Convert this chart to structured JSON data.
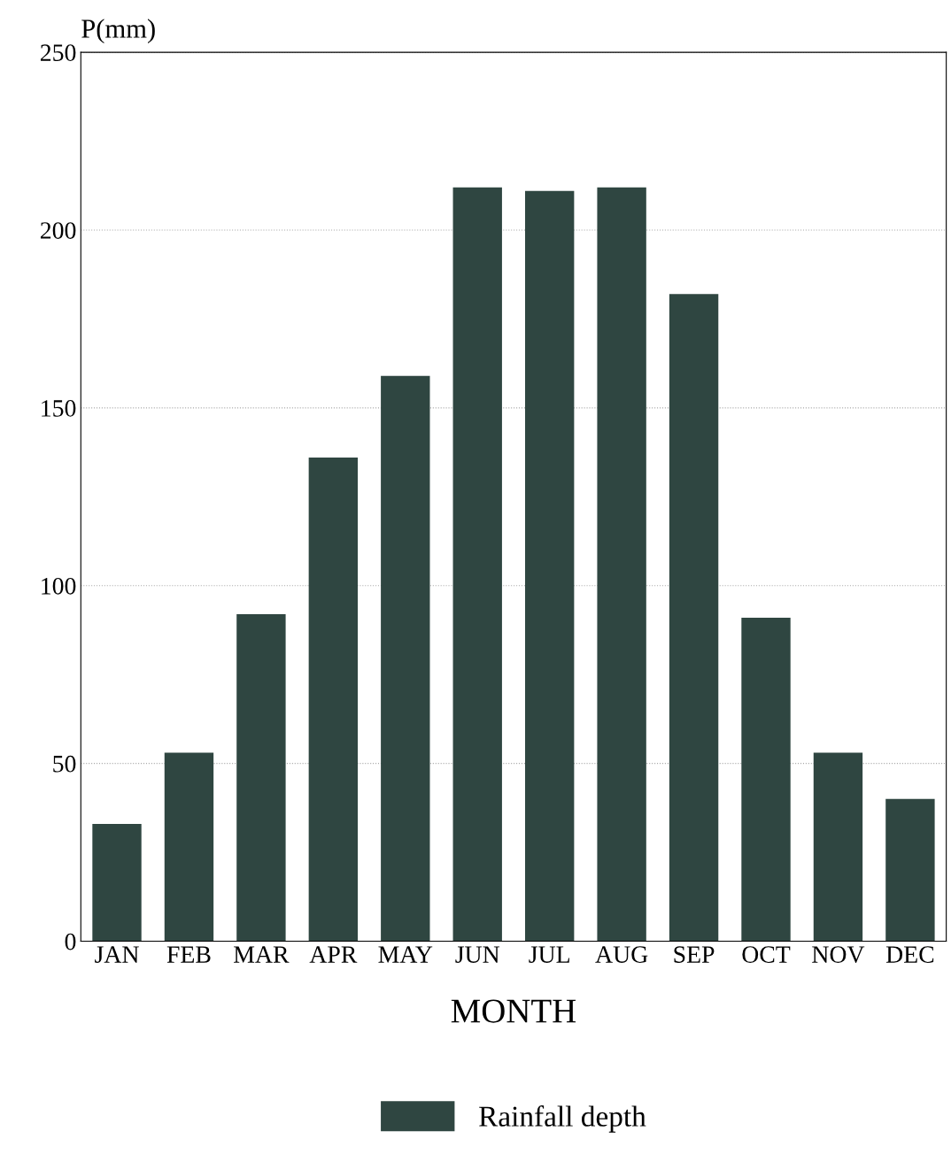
{
  "chart_data": {
    "type": "bar",
    "xlabel": "MONTH",
    "ylabel": "P(mm)",
    "categories": [
      "JAN",
      "FEB",
      "MAR",
      "APR",
      "MAY",
      "JUN",
      "JUL",
      "AUG",
      "SEP",
      "OCT",
      "NOV",
      "DEC"
    ],
    "series": [
      {
        "name": "Rainfall depth",
        "color": "#2f4641",
        "values": [
          33,
          53,
          92,
          136,
          159,
          212,
          211,
          212,
          182,
          91,
          53,
          40
        ]
      }
    ],
    "ylim": [
      0,
      250
    ],
    "yticks": [
      0,
      50,
      100,
      150,
      200,
      250
    ],
    "grid": "y",
    "legend": "bottom"
  }
}
